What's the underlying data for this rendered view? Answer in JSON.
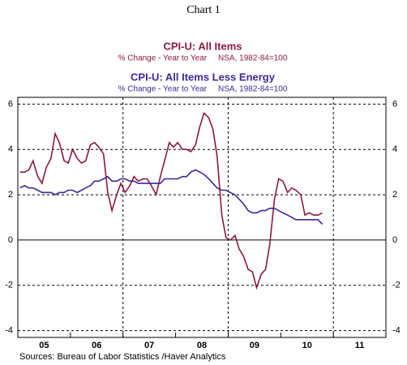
{
  "chart_data": {
    "type": "line",
    "title": "Chart 1",
    "annotations": [
      {
        "text": "CPI-U: All Items",
        "color": "#8b1a3a"
      },
      {
        "text": "% Change - Year to Year     NSA, 1982-84=100",
        "color": "#8b1a3a"
      },
      {
        "text": "CPI-U: All Items Less Energy",
        "color": "#3a2a9a"
      },
      {
        "text": "% Change - Year to Year     NSA, 1982-84=100",
        "color": "#3a2a9a"
      }
    ],
    "source": "Sources:  Bureau of Labor Statistics /Haver Analytics",
    "x": [
      5.04,
      5.13,
      5.21,
      5.29,
      5.38,
      5.46,
      5.54,
      5.63,
      5.71,
      5.79,
      5.88,
      5.96,
      6.04,
      6.13,
      6.21,
      6.29,
      6.38,
      6.46,
      6.54,
      6.63,
      6.71,
      6.79,
      6.88,
      6.96,
      7.04,
      7.13,
      7.21,
      7.29,
      7.38,
      7.46,
      7.54,
      7.63,
      7.71,
      7.79,
      7.88,
      7.96,
      8.04,
      8.13,
      8.21,
      8.29,
      8.38,
      8.46,
      8.54,
      8.63,
      8.71,
      8.79,
      8.88,
      8.96,
      9.04,
      9.13,
      9.21,
      9.29,
      9.38,
      9.46,
      9.54,
      9.63,
      9.71,
      9.79,
      9.88,
      9.96,
      10.04,
      10.13,
      10.21,
      10.29,
      10.38,
      10.46,
      10.54,
      10.63,
      10.71,
      10.79
    ],
    "series": [
      {
        "name": "CPI-U: All Items",
        "color": "#8b1a3a",
        "values": [
          3.0,
          3.0,
          3.1,
          3.5,
          2.8,
          2.5,
          3.2,
          3.6,
          4.7,
          4.3,
          3.5,
          3.4,
          4.0,
          3.6,
          3.4,
          3.5,
          4.2,
          4.3,
          4.1,
          3.8,
          2.1,
          1.3,
          2.0,
          2.5,
          2.1,
          2.4,
          2.8,
          2.6,
          2.7,
          2.7,
          2.4,
          2.0,
          2.8,
          3.5,
          4.3,
          4.1,
          4.3,
          4.0,
          4.0,
          3.9,
          4.2,
          5.0,
          5.6,
          5.4,
          4.9,
          3.7,
          1.1,
          0.1,
          0.0,
          0.2,
          -0.4,
          -0.7,
          -1.3,
          -1.4,
          -2.1,
          -1.5,
          -1.3,
          -0.2,
          1.8,
          2.7,
          2.6,
          2.1,
          2.3,
          2.2,
          2.0,
          1.1,
          1.2,
          1.1,
          1.1,
          1.2
        ]
      },
      {
        "name": "CPI-U: All Items Less Energy",
        "color": "#3a2a9a",
        "values": [
          2.3,
          2.4,
          2.3,
          2.3,
          2.2,
          2.1,
          2.1,
          2.1,
          2.0,
          2.1,
          2.1,
          2.2,
          2.2,
          2.1,
          2.2,
          2.3,
          2.4,
          2.6,
          2.6,
          2.7,
          2.8,
          2.6,
          2.6,
          2.7,
          2.7,
          2.6,
          2.6,
          2.5,
          2.5,
          2.5,
          2.5,
          2.5,
          2.5,
          2.7,
          2.7,
          2.7,
          2.7,
          2.8,
          2.8,
          3.0,
          3.1,
          3.0,
          2.9,
          2.7,
          2.5,
          2.3,
          2.2,
          2.2,
          2.1,
          2.0,
          1.8,
          1.6,
          1.3,
          1.2,
          1.2,
          1.3,
          1.3,
          1.4,
          1.4,
          1.3,
          1.2,
          1.1,
          1.0,
          0.9,
          0.9,
          0.9,
          0.9,
          0.9,
          0.9,
          0.7
        ]
      }
    ],
    "xlim": [
      5,
      12
    ],
    "xticks": [
      {
        "value": 5.5,
        "label": "05"
      },
      {
        "value": 6.5,
        "label": "06"
      },
      {
        "value": 7.5,
        "label": "07"
      },
      {
        "value": 8.5,
        "label": "08"
      },
      {
        "value": 9.5,
        "label": "09"
      },
      {
        "value": 10.5,
        "label": "10"
      },
      {
        "value": 11.5,
        "label": "11"
      }
    ],
    "xgrid": [
      7,
      9,
      11
    ],
    "ylim": [
      -4.3,
      6.3
    ],
    "yticks": [
      -4,
      -2,
      0,
      2,
      4,
      6
    ],
    "grid": true
  }
}
